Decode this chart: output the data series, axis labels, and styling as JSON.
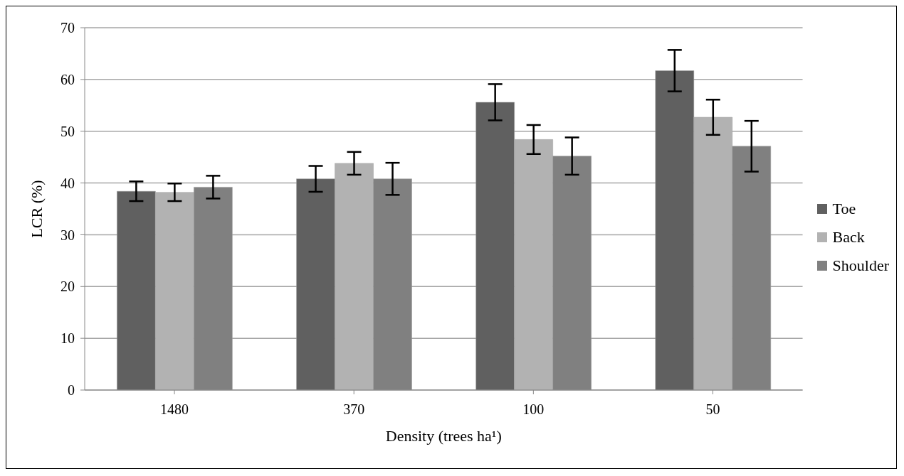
{
  "chart_data": {
    "type": "bar",
    "xlabel": "Density (trees ha¹)",
    "ylabel": "LCR (%)",
    "categories": [
      "1480",
      "370",
      "100",
      "50"
    ],
    "series": [
      {
        "name": "Toe",
        "color": "#606060",
        "values": [
          38.4,
          40.8,
          55.6,
          61.7
        ],
        "errors": [
          1.9,
          2.5,
          3.5,
          4.0
        ]
      },
      {
        "name": "Back",
        "color": "#b2b2b2",
        "values": [
          38.2,
          43.8,
          48.4,
          52.7
        ],
        "errors": [
          1.7,
          2.2,
          2.8,
          3.4
        ]
      },
      {
        "name": "Shoulder",
        "color": "#808080",
        "values": [
          39.2,
          40.8,
          45.2,
          47.1
        ],
        "errors": [
          2.2,
          3.1,
          3.6,
          4.9
        ]
      }
    ],
    "ylim": [
      0,
      70
    ],
    "yticks": [
      0,
      10,
      20,
      30,
      40,
      50,
      60,
      70
    ],
    "grid": "y",
    "legend": "right"
  }
}
